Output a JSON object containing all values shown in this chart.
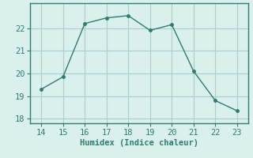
{
  "x": [
    14,
    15,
    16,
    17,
    18,
    19,
    20,
    21,
    22,
    23
  ],
  "y": [
    19.3,
    19.85,
    22.2,
    22.45,
    22.55,
    21.9,
    22.15,
    20.1,
    18.8,
    18.35
  ],
  "line_color": "#2e7d6e",
  "marker": "o",
  "marker_size": 2.5,
  "bg_color": "#d9f0ec",
  "grid_color": "#aacfc8",
  "xlabel": "Humidex (Indice chaleur)",
  "xlim": [
    13.5,
    23.5
  ],
  "ylim": [
    17.8,
    23.1
  ],
  "xticks": [
    14,
    15,
    16,
    17,
    18,
    19,
    20,
    21,
    22,
    23
  ],
  "yticks": [
    18,
    19,
    20,
    21,
    22
  ],
  "xlabel_fontsize": 7.5,
  "tick_fontsize": 7.5,
  "spine_color": "#2e7d6e",
  "linewidth": 1.0
}
